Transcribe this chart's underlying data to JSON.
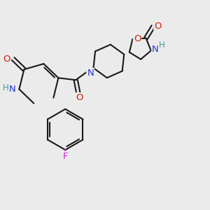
{
  "background_color": "#ebebeb",
  "figsize": [
    3.0,
    3.0
  ],
  "dpi": 100,
  "bond_color": "#1a1a1a",
  "bond_lw": 1.5,
  "colors": {
    "N": "#2233cc",
    "O": "#cc2200",
    "F": "#cc22cc",
    "H": "#4a9a9a",
    "C": "#1a1a1a"
  }
}
